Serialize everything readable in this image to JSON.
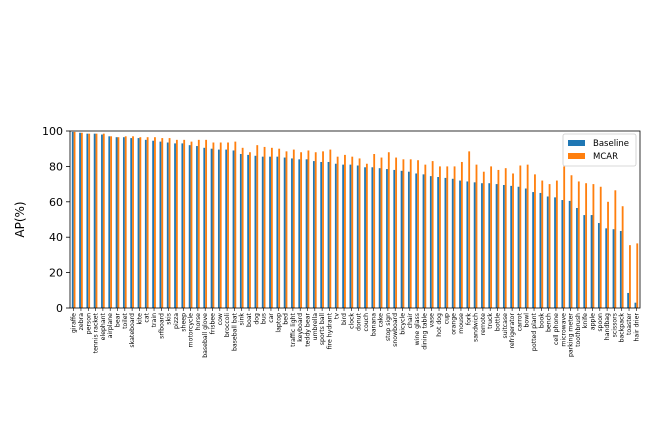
{
  "chart_data": {
    "type": "bar",
    "ylabel": "AP(%)",
    "ylim": [
      0,
      100
    ],
    "yticks": [
      0,
      20,
      40,
      60,
      80,
      100
    ],
    "legend_position": "top-right",
    "categories": [
      "giraffe",
      "zebra",
      "person",
      "tennis racket",
      "elephant",
      "airplane",
      "bear",
      "toilet",
      "skateboard",
      "kite",
      "cat",
      "train",
      "srfboard",
      "skis",
      "pizza",
      "sheep",
      "motorcycle",
      "horse",
      "baseball glove",
      "frisbee",
      "cow",
      "broccoli",
      "baseball bat",
      "sink",
      "boat",
      "dog",
      "bus",
      "car",
      "laptop",
      "bed",
      "traffic light",
      "keyboard",
      "teddy bear",
      "umbrella",
      "sports ball",
      "fire hydrant",
      "tv",
      "bird",
      "clock",
      "donut",
      "couch",
      "banana",
      "cake",
      "stop sign",
      "snowboard",
      "bicycle",
      "chair",
      "wine glass",
      "dining table",
      "vase",
      "hot dog",
      "cup",
      "orange",
      "mouse",
      "fork",
      "sandwich",
      "remote",
      "truck",
      "bottle",
      "suitcase",
      "refrigerator",
      "carrot",
      "bowl",
      "potted plant",
      "book",
      "bench",
      "cell phone",
      "microwave",
      "parking meter",
      "toothbrush",
      "knife",
      "apple",
      "spoon",
      "handbag",
      "scissors",
      "backpack",
      "toaster",
      "hair drier"
    ],
    "series": [
      {
        "name": "Baseline",
        "color": "#1f77b4",
        "values": [
          99.5,
          99,
          98.5,
          98.5,
          98,
          97,
          96.5,
          96.5,
          96,
          96,
          95,
          94.5,
          94,
          93.5,
          93,
          93,
          92,
          91.5,
          90.5,
          90,
          89.5,
          89.5,
          89,
          87,
          86.5,
          86,
          85.5,
          85.5,
          85.5,
          85,
          84.5,
          84,
          84,
          83,
          82.5,
          82.5,
          81.5,
          81,
          81,
          80.5,
          79.5,
          79.5,
          79,
          78.5,
          78,
          77.5,
          77,
          76,
          75.5,
          74.5,
          74,
          73.5,
          73,
          72,
          71.5,
          71,
          70.5,
          70.5,
          70,
          69.5,
          69,
          68.5,
          67.5,
          65.5,
          65,
          63,
          62.5,
          61,
          60.5,
          56.5,
          52.5,
          52.5,
          48,
          45,
          44.5,
          43.5,
          8.5,
          3
        ]
      },
      {
        "name": "MCAR",
        "color": "#ff7f0e",
        "values": [
          99.5,
          99,
          98.5,
          98.5,
          98.5,
          97,
          96.5,
          97,
          97,
          96.5,
          96.5,
          96.5,
          96,
          96,
          95,
          95,
          94,
          95,
          95,
          93.5,
          93.5,
          93.5,
          94,
          90.5,
          88,
          92,
          91,
          90.5,
          90,
          88.5,
          89.5,
          88,
          89,
          88,
          88.5,
          89.5,
          85.5,
          86.5,
          85.5,
          84.5,
          81.5,
          87,
          85,
          88,
          85,
          84,
          84,
          83.5,
          81,
          83,
          80,
          80,
          80,
          82.5,
          88.5,
          81,
          77,
          80,
          78,
          79,
          76,
          80.5,
          81,
          75.5,
          72,
          70,
          72,
          80,
          75,
          71.5,
          70.5,
          70,
          68.5,
          60,
          66.5,
          57.5,
          35.5,
          36.5
        ]
      }
    ]
  }
}
